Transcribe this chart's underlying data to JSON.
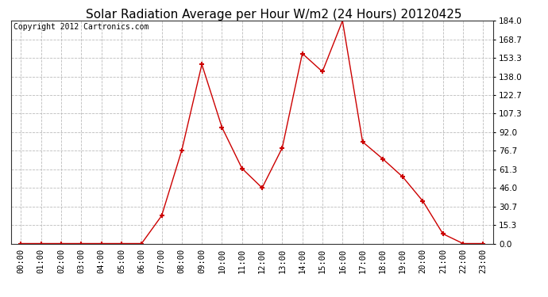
{
  "title": "Solar Radiation Average per Hour W/m2 (24 Hours) 20120425",
  "copyright": "Copyright 2012 Cartronics.com",
  "hours": [
    "00:00",
    "01:00",
    "02:00",
    "03:00",
    "04:00",
    "05:00",
    "06:00",
    "07:00",
    "08:00",
    "09:00",
    "10:00",
    "11:00",
    "12:00",
    "13:00",
    "14:00",
    "15:00",
    "16:00",
    "17:00",
    "18:00",
    "19:00",
    "20:00",
    "21:00",
    "22:00",
    "23:00"
  ],
  "values": [
    0.0,
    0.0,
    0.0,
    0.0,
    0.0,
    0.0,
    0.0,
    23.0,
    77.0,
    148.0,
    96.0,
    62.0,
    46.0,
    79.0,
    157.0,
    142.0,
    184.0,
    84.0,
    70.0,
    55.0,
    35.0,
    8.0,
    0.0,
    0.0
  ],
  "y_ticks": [
    0.0,
    15.3,
    30.7,
    46.0,
    61.3,
    76.7,
    92.0,
    107.3,
    122.7,
    138.0,
    153.3,
    168.7,
    184.0
  ],
  "y_min": 0.0,
  "y_max": 184.0,
  "line_color": "#cc0000",
  "marker": "+",
  "marker_size": 5,
  "marker_color": "#cc0000",
  "background_color": "#ffffff",
  "plot_bg_color": "#ffffff",
  "grid_color": "#bbbbbb",
  "grid_style": "--",
  "title_fontsize": 11,
  "tick_fontsize": 7.5,
  "copyright_fontsize": 7
}
